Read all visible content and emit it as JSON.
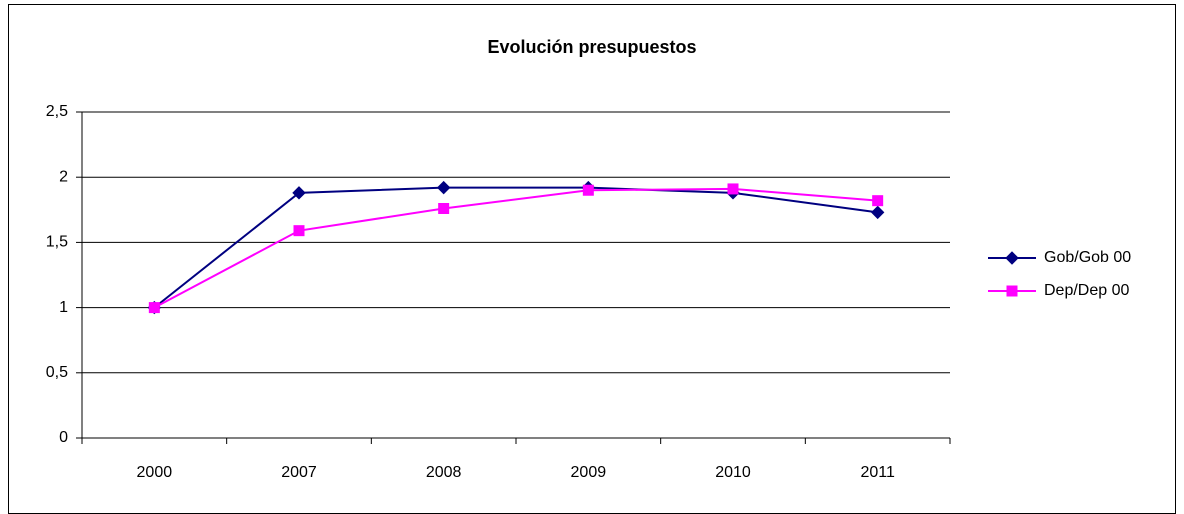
{
  "chart_data": {
    "type": "line",
    "title": "Evolución presupuestos",
    "categories": [
      "2000",
      "2007",
      "2008",
      "2009",
      "2010",
      "2011"
    ],
    "series": [
      {
        "name": "Gob/Gob 00",
        "color": "#000080",
        "marker": "diamond",
        "values": [
          1,
          1.88,
          1.92,
          1.92,
          1.88,
          1.73
        ]
      },
      {
        "name": "Dep/Dep 00",
        "color": "#ff00ff",
        "marker": "square",
        "values": [
          1,
          1.59,
          1.76,
          1.9,
          1.91,
          1.82
        ]
      }
    ],
    "ylim": [
      0,
      2.5
    ],
    "yticks": [
      0,
      {
        "value": 0.5,
        "label": "0,5"
      },
      1,
      {
        "value": 1.5,
        "label": "1,5"
      },
      2,
      {
        "value": 2.5,
        "label": "2,5"
      }
    ],
    "grid": true,
    "legend": "right"
  }
}
